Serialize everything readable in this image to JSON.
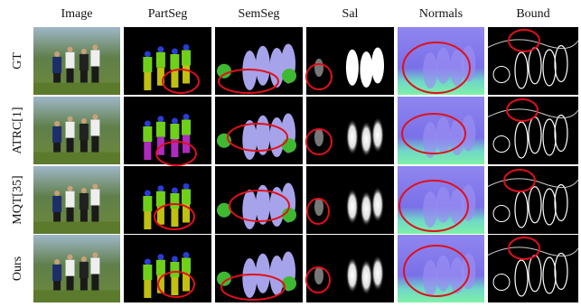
{
  "columns": [
    "Image",
    "PartSeg",
    "SemSeg",
    "Sal",
    "Normals",
    "Bound"
  ],
  "rows": [
    "GT",
    "ATRC[1]",
    "MQT[35]",
    "Ours"
  ]
}
